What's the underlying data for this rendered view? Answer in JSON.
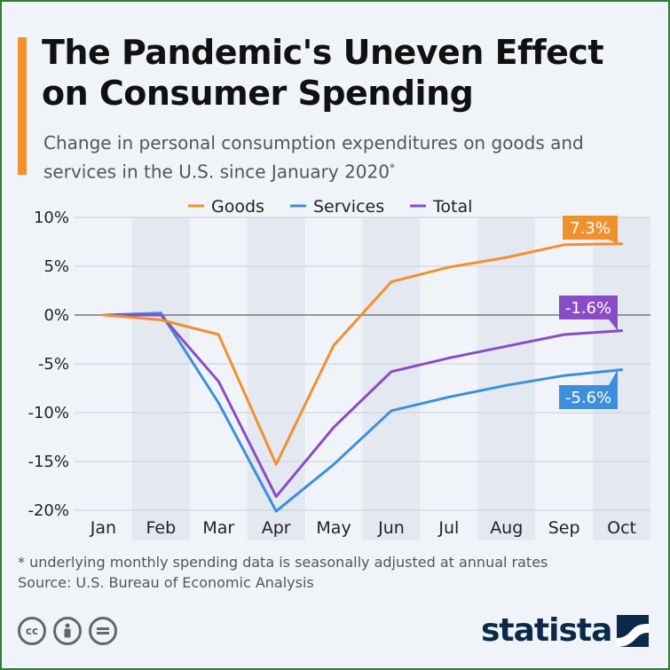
{
  "header": {
    "title": "The Pandemic's Uneven Effect on Consumer Spending",
    "subtitle": "Change in personal consumption expenditures on goods and services in the U.S. since January 2020",
    "subtitle_mark": "*"
  },
  "footer": {
    "footnote": "* underlying monthly spending data is seasonally adjusted at annual rates",
    "source": "Source: U.S. Bureau of Economic Analysis",
    "brand": "statista",
    "license_icons": [
      "cc-icon",
      "by-icon",
      "nd-icon"
    ]
  },
  "colors": {
    "accent": "#f0912e",
    "goods": "#f0912e",
    "services": "#3d8fdc",
    "total": "#8a4cc4",
    "band": "#e3e8f1",
    "brand": "#0b2a4a"
  },
  "chart_data": {
    "type": "line",
    "title": "The Pandemic's Uneven Effect on Consumer Spending",
    "categories": [
      "Jan",
      "Feb",
      "Mar",
      "Apr",
      "May",
      "Jun",
      "Jul",
      "Aug",
      "Sep",
      "Oct"
    ],
    "ylim": [
      -20,
      10
    ],
    "yticks": [
      10,
      5,
      0,
      -5,
      -10,
      -15,
      -20
    ],
    "ytick_labels": [
      "10%",
      "5%",
      "0%",
      "-5%",
      "-10%",
      "-15%",
      "-20%"
    ],
    "xlabel": "",
    "ylabel": "",
    "legend_position": "top-center",
    "series": [
      {
        "name": "Goods",
        "values": [
          0,
          -0.5,
          -2.0,
          -15.3,
          -3.1,
          3.4,
          4.9,
          5.9,
          7.2,
          7.3
        ],
        "end_label": "7.3%"
      },
      {
        "name": "Services",
        "values": [
          0,
          0.2,
          -9.0,
          -20.1,
          -15.3,
          -9.8,
          -8.4,
          -7.2,
          -6.2,
          -5.6
        ],
        "end_label": "-5.6%"
      },
      {
        "name": "Total",
        "values": [
          0,
          0.0,
          -6.8,
          -18.6,
          -11.5,
          -5.8,
          -4.4,
          -3.2,
          -2.0,
          -1.6
        ],
        "end_label": "-1.6%"
      }
    ]
  }
}
